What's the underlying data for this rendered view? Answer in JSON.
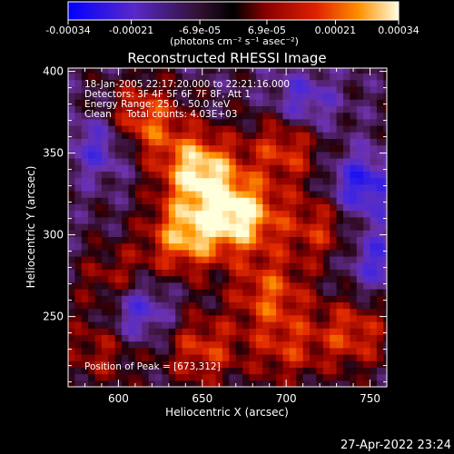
{
  "chart_data": {
    "type": "heatmap",
    "title": "Reconstructed RHESSI Image",
    "xlabel": "Heliocentric X (arcsec)",
    "ylabel": "Heliocentric Y (arcsec)",
    "xlim": [
      570,
      760
    ],
    "ylim": [
      207,
      402
    ],
    "xticks": [
      600,
      650,
      700,
      750
    ],
    "yticks": [
      250,
      300,
      350,
      400
    ],
    "colorbar": {
      "ticks": [
        "-0.00034",
        "-0.00021",
        "-6.9e-05",
        "6.9e-05",
        "0.00021",
        "0.00034"
      ],
      "tick_values": [
        -0.00034,
        -0.00021,
        -6.9e-05,
        6.9e-05,
        0.00021,
        0.00034
      ],
      "range": [
        -0.00034,
        0.00034
      ],
      "unit_label": "(photons cm⁻² s⁻¹ asec⁻²)"
    },
    "annotations": [
      "18-Jan-2005 22:17:20.000 to 22:21:16.000",
      "Detectors: 3F 4F 5F 6F 7F 8F, Att 1",
      "Energy Range: 25.0 - 50.0 keV",
      "Clean     Total counts: 4.03E+03"
    ],
    "peak_label": "Position of Peak = [673,312]",
    "sources": [
      {
        "x": 648,
        "y": 340,
        "intensity": 1.0
      },
      {
        "x": 673,
        "y": 312,
        "intensity": 1.0
      },
      {
        "x": 640,
        "y": 300,
        "intensity": 0.85
      },
      {
        "x": 615,
        "y": 370,
        "intensity": 0.7
      },
      {
        "x": 700,
        "y": 355,
        "intensity": 0.6
      },
      {
        "x": 690,
        "y": 265,
        "intensity": 0.6
      },
      {
        "x": 720,
        "y": 305,
        "intensity": 0.5
      },
      {
        "x": 600,
        "y": 270,
        "intensity": 0.5
      },
      {
        "x": 740,
        "y": 240,
        "intensity": 0.55
      },
      {
        "x": 650,
        "y": 230,
        "intensity": 0.55
      },
      {
        "x": 700,
        "y": 230,
        "intensity": 0.45
      },
      {
        "x": 590,
        "y": 230,
        "intensity": 0.4
      }
    ],
    "minima": [
      {
        "x": 745,
        "y": 330,
        "intensity": -0.7
      },
      {
        "x": 610,
        "y": 255,
        "intensity": -0.7
      },
      {
        "x": 590,
        "y": 355,
        "intensity": -0.5
      },
      {
        "x": 710,
        "y": 380,
        "intensity": -0.5
      },
      {
        "x": 755,
        "y": 285,
        "intensity": -0.5
      }
    ]
  },
  "footer": {
    "timestamp": "27-Apr-2022 23:24"
  }
}
